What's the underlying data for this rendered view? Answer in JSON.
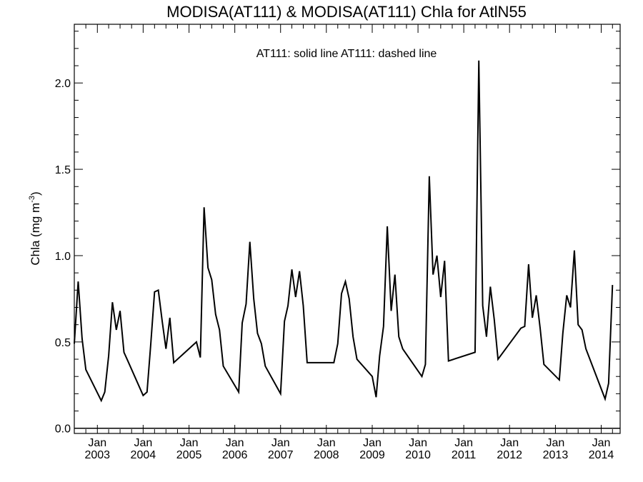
{
  "chart_data": {
    "type": "line",
    "title": "MODISA(AT111) & MODISA(AT111)  Chla for AtlN55",
    "legend_text": "AT111: solid line   AT111: dashed line",
    "ylabel": "Chla (mg m",
    "ylabel_sup": "-3",
    "ylabel_close": ")",
    "ylim": [
      -0.03,
      2.34
    ],
    "xlim": [
      "2002-07-01",
      "2014-06-01"
    ],
    "yticks": [
      {
        "value": 0.0,
        "label": "0.0"
      },
      {
        "value": 0.5,
        "label": "0.5"
      },
      {
        "value": 1.0,
        "label": "1.0"
      },
      {
        "value": 1.5,
        "label": "1.5"
      },
      {
        "value": 2.0,
        "label": "2.0"
      }
    ],
    "xticks": [
      {
        "date": "2003-01-01",
        "month": "Jan",
        "year": "2003"
      },
      {
        "date": "2004-01-01",
        "month": "Jan",
        "year": "2004"
      },
      {
        "date": "2005-01-01",
        "month": "Jan",
        "year": "2005"
      },
      {
        "date": "2006-01-01",
        "month": "Jan",
        "year": "2006"
      },
      {
        "date": "2007-01-01",
        "month": "Jan",
        "year": "2007"
      },
      {
        "date": "2008-01-01",
        "month": "Jan",
        "year": "2008"
      },
      {
        "date": "2009-01-01",
        "month": "Jan",
        "year": "2009"
      },
      {
        "date": "2010-01-01",
        "month": "Jan",
        "year": "2010"
      },
      {
        "date": "2011-01-01",
        "month": "Jan",
        "year": "2011"
      },
      {
        "date": "2012-01-01",
        "month": "Jan",
        "year": "2012"
      },
      {
        "date": "2013-01-01",
        "month": "Jan",
        "year": "2013"
      },
      {
        "date": "2014-01-01",
        "month": "Jan",
        "year": "2014"
      }
    ],
    "grid": false,
    "series": [
      {
        "style": "solid",
        "color": "#000000",
        "points": [
          [
            "2002-07-01",
            0.49
          ],
          [
            "2002-08-01",
            0.85
          ],
          [
            "2002-09-01",
            0.52
          ],
          [
            "2002-10-01",
            0.34
          ],
          [
            "2003-02-01",
            0.16
          ],
          [
            "2003-03-01",
            0.21
          ],
          [
            "2003-04-01",
            0.42
          ],
          [
            "2003-05-01",
            0.73
          ],
          [
            "2003-06-01",
            0.57
          ],
          [
            "2003-07-01",
            0.68
          ],
          [
            "2003-08-01",
            0.44
          ],
          [
            "2003-09-01",
            0.39
          ],
          [
            "2004-01-01",
            0.19
          ],
          [
            "2004-02-01",
            0.21
          ],
          [
            "2004-03-01",
            0.48
          ],
          [
            "2004-04-01",
            0.79
          ],
          [
            "2004-05-01",
            0.8
          ],
          [
            "2004-06-01",
            0.62
          ],
          [
            "2004-07-01",
            0.46
          ],
          [
            "2004-08-01",
            0.64
          ],
          [
            "2004-09-01",
            0.38
          ],
          [
            "2005-03-01",
            0.5
          ],
          [
            "2005-04-01",
            0.41
          ],
          [
            "2005-05-01",
            1.28
          ],
          [
            "2005-06-01",
            0.93
          ],
          [
            "2005-07-01",
            0.86
          ],
          [
            "2005-08-01",
            0.66
          ],
          [
            "2005-09-01",
            0.57
          ],
          [
            "2005-10-01",
            0.36
          ],
          [
            "2006-02-01",
            0.21
          ],
          [
            "2006-03-01",
            0.61
          ],
          [
            "2006-04-01",
            0.72
          ],
          [
            "2006-05-01",
            1.08
          ],
          [
            "2006-06-01",
            0.75
          ],
          [
            "2006-07-01",
            0.55
          ],
          [
            "2006-08-01",
            0.49
          ],
          [
            "2006-09-01",
            0.36
          ],
          [
            "2007-01-01",
            0.2
          ],
          [
            "2007-02-01",
            0.62
          ],
          [
            "2007-03-01",
            0.71
          ],
          [
            "2007-04-01",
            0.92
          ],
          [
            "2007-05-01",
            0.76
          ],
          [
            "2007-06-01",
            0.91
          ],
          [
            "2007-07-01",
            0.71
          ],
          [
            "2007-08-01",
            0.38
          ],
          [
            "2008-03-01",
            0.38
          ],
          [
            "2008-04-01",
            0.49
          ],
          [
            "2008-05-01",
            0.78
          ],
          [
            "2008-06-01",
            0.85
          ],
          [
            "2008-07-01",
            0.75
          ],
          [
            "2008-08-01",
            0.53
          ],
          [
            "2008-09-01",
            0.4
          ],
          [
            "2009-01-01",
            0.3
          ],
          [
            "2009-02-01",
            0.18
          ],
          [
            "2009-03-01",
            0.42
          ],
          [
            "2009-04-01",
            0.59
          ],
          [
            "2009-05-01",
            1.17
          ],
          [
            "2009-06-01",
            0.68
          ],
          [
            "2009-07-01",
            0.89
          ],
          [
            "2009-08-01",
            0.53
          ],
          [
            "2009-09-01",
            0.46
          ],
          [
            "2010-02-01",
            0.3
          ],
          [
            "2010-03-01",
            0.37
          ],
          [
            "2010-04-01",
            1.46
          ],
          [
            "2010-05-01",
            0.89
          ],
          [
            "2010-06-01",
            1.0
          ],
          [
            "2010-07-01",
            0.76
          ],
          [
            "2010-08-01",
            0.97
          ],
          [
            "2010-09-01",
            0.39
          ],
          [
            "2011-04-01",
            0.44
          ],
          [
            "2011-05-01",
            2.13
          ],
          [
            "2011-06-01",
            0.71
          ],
          [
            "2011-07-01",
            0.53
          ],
          [
            "2011-08-01",
            0.82
          ],
          [
            "2011-09-01",
            0.63
          ],
          [
            "2011-10-01",
            0.4
          ],
          [
            "2012-04-01",
            0.58
          ],
          [
            "2012-05-01",
            0.59
          ],
          [
            "2012-06-01",
            0.95
          ],
          [
            "2012-07-01",
            0.64
          ],
          [
            "2012-08-01",
            0.77
          ],
          [
            "2012-09-01",
            0.58
          ],
          [
            "2012-10-01",
            0.37
          ],
          [
            "2013-02-01",
            0.28
          ],
          [
            "2013-03-01",
            0.55
          ],
          [
            "2013-04-01",
            0.77
          ],
          [
            "2013-05-01",
            0.7
          ],
          [
            "2013-06-01",
            1.03
          ],
          [
            "2013-07-01",
            0.6
          ],
          [
            "2013-08-01",
            0.57
          ],
          [
            "2013-09-01",
            0.46
          ],
          [
            "2014-02-01",
            0.17
          ],
          [
            "2014-03-01",
            0.26
          ],
          [
            "2014-04-01",
            0.83
          ]
        ]
      }
    ]
  }
}
